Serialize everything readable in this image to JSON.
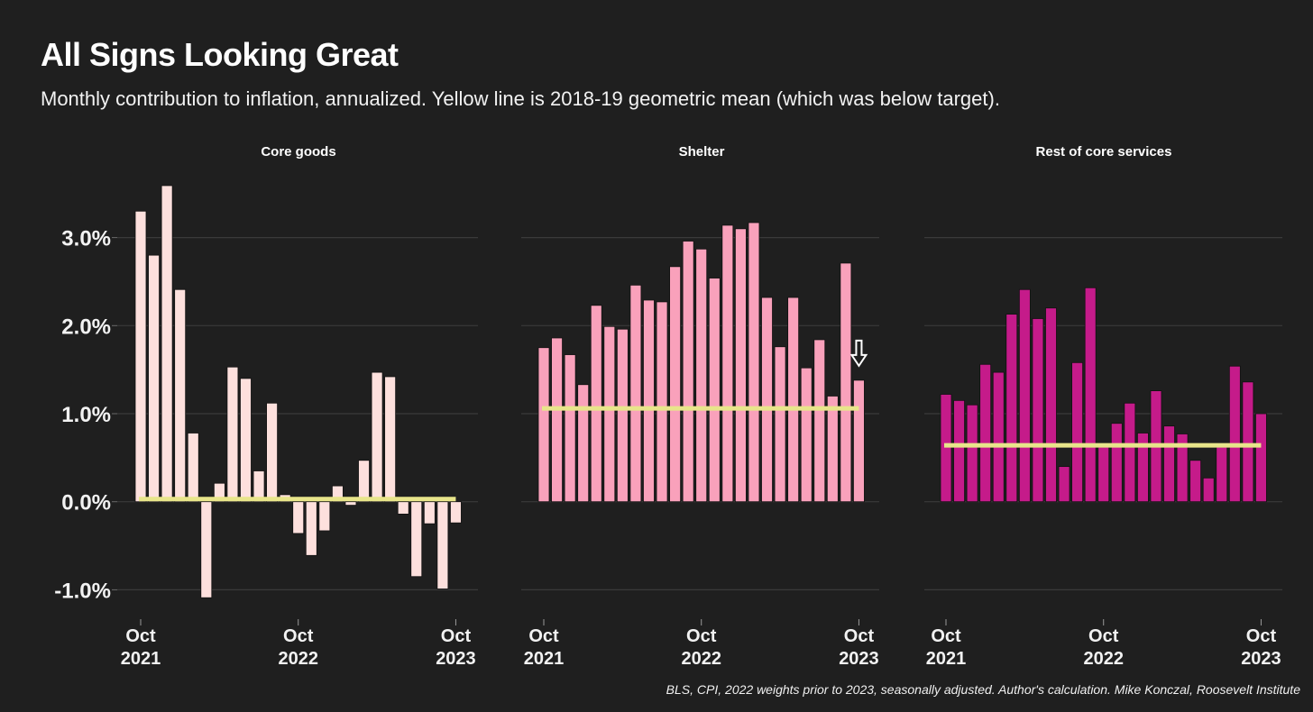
{
  "header": {
    "title": "All Signs Looking Great",
    "subtitle": "Monthly contribution to inflation, annualized. Yellow line is 2018-19 geometric mean (which was below target)."
  },
  "footer": {
    "source": "BLS, CPI, 2022 weights prior to 2023, seasonally adjusted. Author's calculation. Mike Konczal, Roosevelt Institute"
  },
  "colors": {
    "background": "#1f1f1f",
    "gridline": "#3a3a3a",
    "mean_line": "#e8e58a",
    "core_goods": "#fde0dd",
    "shelter": "#f9a1bb",
    "rest_of_core_services": "#c51b8a",
    "arrow": "#ffffff"
  },
  "chart_data": {
    "type": "bar",
    "title": "All Signs Looking Great",
    "subtitle": "Monthly contribution to inflation, annualized. Yellow line is 2018-19 geometric mean (which was below target).",
    "xlabel": "",
    "ylabel": "",
    "ylim": [
      -1.3,
      3.7
    ],
    "grid": true,
    "y_ticks": [
      -1.0,
      0.0,
      1.0,
      2.0,
      3.0
    ],
    "y_tick_labels": [
      "-1.0%",
      "0.0%",
      "1.0%",
      "2.0%",
      "3.0%"
    ],
    "x_ticks": [
      {
        "index": 0,
        "label": [
          "Oct",
          "2021"
        ]
      },
      {
        "index": 12,
        "label": [
          "Oct",
          "2022"
        ]
      },
      {
        "index": 24,
        "label": [
          "Oct",
          "2023"
        ]
      }
    ],
    "categories": [
      "Oct 2021",
      "Nov 2021",
      "Dec 2021",
      "Jan 2022",
      "Feb 2022",
      "Mar 2022",
      "Apr 2022",
      "May 2022",
      "Jun 2022",
      "Jul 2022",
      "Aug 2022",
      "Sep 2022",
      "Oct 2022",
      "Nov 2022",
      "Dec 2022",
      "Jan 2023",
      "Feb 2023",
      "Mar 2023",
      "Apr 2023",
      "May 2023",
      "Jun 2023",
      "Jul 2023",
      "Aug 2023",
      "Sep 2023",
      "Oct 2023"
    ],
    "series": [
      {
        "name": "Core goods",
        "values": [
          3.3,
          2.8,
          3.59,
          2.41,
          0.78,
          -1.09,
          0.21,
          1.53,
          1.4,
          0.35,
          1.12,
          0.08,
          -0.36,
          -0.61,
          -0.33,
          0.18,
          -0.04,
          0.47,
          1.47,
          1.42,
          -0.14,
          -0.85,
          -0.25,
          -0.99,
          -0.24
        ],
        "mean_2018_19": 0.03
      },
      {
        "name": "Shelter",
        "values": [
          1.75,
          1.86,
          1.67,
          1.33,
          2.23,
          1.99,
          1.96,
          2.46,
          2.29,
          2.27,
          2.67,
          2.96,
          2.87,
          2.54,
          3.14,
          3.1,
          3.17,
          2.32,
          1.76,
          2.32,
          1.52,
          1.84,
          1.2,
          2.71,
          1.38
        ],
        "mean_2018_19": 1.06,
        "annotation": "down-arrow above last bar"
      },
      {
        "name": "Rest of core services",
        "values": [
          1.22,
          1.15,
          1.1,
          1.56,
          1.47,
          2.13,
          2.41,
          2.08,
          2.2,
          0.4,
          1.58,
          2.43,
          0.62,
          0.89,
          1.12,
          0.78,
          1.26,
          0.86,
          0.77,
          0.47,
          0.27,
          0.62,
          1.54,
          1.36,
          1.0
        ],
        "mean_2018_19": 0.64
      }
    ]
  }
}
